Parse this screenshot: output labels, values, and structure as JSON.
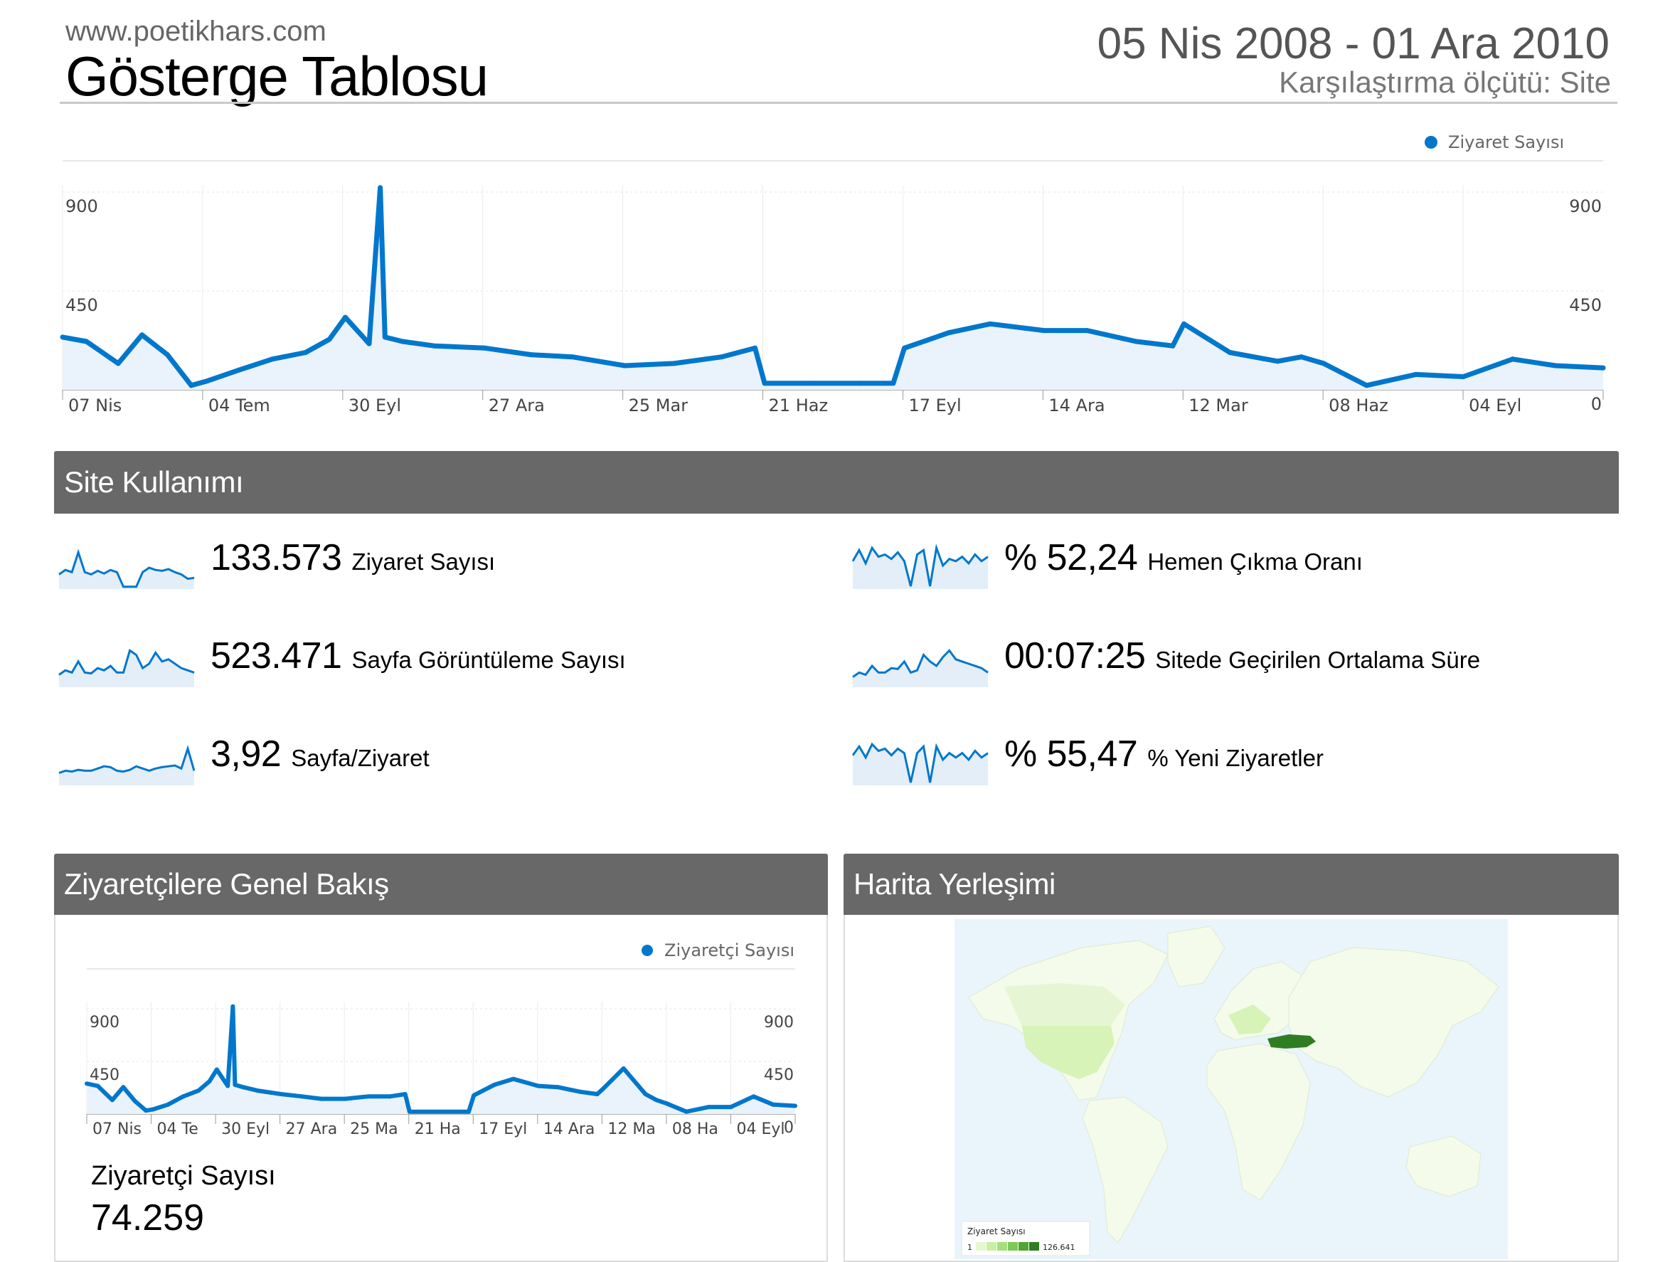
{
  "header": {
    "site": "www.poetikhars.com",
    "title": "Gösterge Tablosu",
    "date_range": "05 Nis 2008 - 01 Ara 2010",
    "compare": "Karşılaştırma ölçütü: Site"
  },
  "chart_data": [
    {
      "type": "area",
      "legend": "Ziyaret Sayısı",
      "y_left_ticks": [
        "900",
        "450"
      ],
      "y_right_ticks": [
        "900",
        "450",
        "0"
      ],
      "ylim": [
        0,
        900
      ],
      "x_tick_labels": [
        "07 Nis",
        "04 Tem",
        "30 Eyl",
        "27 Ara",
        "25 Mar",
        "21 Haz",
        "17 Eyl",
        "14 Ara",
        "12 Mar",
        "08 Haz",
        "04 Eyl"
      ],
      "grid": true,
      "color": "#0077cc",
      "x": [
        "2008-04-05",
        "2008-04-20",
        "2008-05-10",
        "2008-05-25",
        "2008-06-10",
        "2008-06-25",
        "2008-07-05",
        "2008-07-25",
        "2008-08-15",
        "2008-09-05",
        "2008-09-20",
        "2008-09-30",
        "2008-10-15",
        "2008-10-22",
        "2008-10-25",
        "2008-11-05",
        "2008-11-25",
        "2008-12-27",
        "2009-01-25",
        "2009-02-20",
        "2009-03-25",
        "2009-04-25",
        "2009-05-25",
        "2009-06-15",
        "2009-06-21",
        "2009-07-20",
        "2009-08-20",
        "2009-09-10",
        "2009-09-17",
        "2009-10-15",
        "2009-11-10",
        "2009-12-14",
        "2010-01-10",
        "2010-02-10",
        "2010-03-05",
        "2010-03-12",
        "2010-04-10",
        "2010-05-10",
        "2010-05-25",
        "2010-06-08",
        "2010-07-05",
        "2010-08-05",
        "2010-09-04",
        "2010-10-05",
        "2010-11-01",
        "2010-12-01"
      ],
      "values": [
        240,
        220,
        120,
        250,
        160,
        20,
        40,
        90,
        140,
        170,
        230,
        330,
        210,
        920,
        240,
        220,
        200,
        190,
        160,
        150,
        110,
        120,
        150,
        190,
        30,
        30,
        30,
        30,
        190,
        260,
        300,
        270,
        270,
        220,
        200,
        300,
        170,
        130,
        150,
        120,
        20,
        70,
        60,
        140,
        110,
        100
      ]
    },
    {
      "type": "area",
      "legend": "Ziyaretçi Sayısı",
      "y_left_ticks": [
        "900",
        "450"
      ],
      "y_right_ticks": [
        "900",
        "450",
        "0"
      ],
      "ylim": [
        0,
        900
      ],
      "x_tick_labels": [
        "07 Nis",
        "04 Te",
        "30 Eyl",
        "27 Ara",
        "25 Ma",
        "21 Ha",
        "17 Eyl",
        "14 Ara",
        "12 Ma",
        "08 Ha",
        "04 Eyl"
      ],
      "grid": true,
      "color": "#0077cc",
      "x": [
        "2008-04-05",
        "2008-04-20",
        "2008-05-10",
        "2008-05-25",
        "2008-06-10",
        "2008-06-25",
        "2008-07-05",
        "2008-07-25",
        "2008-08-15",
        "2008-09-05",
        "2008-09-20",
        "2008-09-30",
        "2008-10-15",
        "2008-10-22",
        "2008-10-25",
        "2008-11-05",
        "2008-11-25",
        "2008-12-27",
        "2009-01-25",
        "2009-02-20",
        "2009-03-25",
        "2009-04-25",
        "2009-05-25",
        "2009-06-15",
        "2009-06-21",
        "2009-07-20",
        "2009-08-20",
        "2009-09-10",
        "2009-09-17",
        "2009-10-15",
        "2009-11-10",
        "2009-12-14",
        "2010-01-10",
        "2010-02-10",
        "2010-03-05",
        "2010-03-12",
        "2010-04-10",
        "2010-05-10",
        "2010-05-25",
        "2010-06-08",
        "2010-07-05",
        "2010-08-05",
        "2010-09-04",
        "2010-10-05",
        "2010-11-01",
        "2010-12-01"
      ],
      "values": [
        260,
        240,
        120,
        230,
        110,
        30,
        40,
        80,
        150,
        200,
        280,
        380,
        240,
        920,
        250,
        230,
        200,
        170,
        150,
        130,
        130,
        150,
        150,
        170,
        20,
        20,
        20,
        20,
        160,
        250,
        300,
        240,
        230,
        190,
        170,
        210,
        390,
        170,
        120,
        90,
        20,
        60,
        60,
        150,
        80,
        70
      ]
    }
  ],
  "site_usage": {
    "title": "Site Kullanımı",
    "metrics": [
      {
        "value": "133.573",
        "label": "Ziyaret Sayısı",
        "spark": [
          30,
          40,
          35,
          80,
          35,
          30,
          38,
          32,
          40,
          35,
          2,
          2,
          2,
          35,
          45,
          40,
          38,
          42,
          35,
          30,
          20,
          22
        ]
      },
      {
        "value": "% 52,24",
        "label": "Hemen Çıkma Oranı",
        "spark": [
          60,
          85,
          55,
          90,
          70,
          75,
          65,
          80,
          60,
          3,
          75,
          85,
          3,
          90,
          50,
          65,
          60,
          70,
          55,
          75,
          60,
          70
        ]
      },
      {
        "value": "523.471",
        "label": "Sayfa Görüntüleme Sayısı",
        "spark": [
          25,
          35,
          30,
          55,
          30,
          28,
          40,
          35,
          45,
          30,
          30,
          80,
          70,
          40,
          50,
          75,
          55,
          60,
          50,
          40,
          35,
          30
        ]
      },
      {
        "value": "00:07:25",
        "label": "Sitede Geçirilen Ortalama Süre",
        "spark": [
          20,
          30,
          25,
          45,
          30,
          30,
          40,
          38,
          55,
          30,
          35,
          70,
          55,
          45,
          65,
          80,
          60,
          55,
          50,
          45,
          40,
          30
        ]
      },
      {
        "value": "3,92",
        "label": "Sayfa/Ziyaret",
        "spark": [
          25,
          30,
          28,
          32,
          30,
          30,
          35,
          40,
          38,
          30,
          28,
          32,
          40,
          35,
          30,
          35,
          38,
          40,
          42,
          35,
          80,
          30
        ]
      },
      {
        "value": "% 55,47",
        "label": "% Yeni Ziyaretler",
        "spark": [
          65,
          85,
          60,
          90,
          75,
          80,
          65,
          80,
          70,
          3,
          70,
          85,
          3,
          85,
          55,
          70,
          60,
          70,
          55,
          75,
          60,
          70
        ]
      }
    ]
  },
  "visitors_overview": {
    "title": "Ziyaretçilere Genel Bakış",
    "metric_label": "Ziyaretçi Sayısı",
    "metric_value": "74.259"
  },
  "map": {
    "title": "Harita Yerleşimi",
    "legend_title": "Ziyaret Sayısı",
    "legend_min": "1",
    "legend_max": "126.641",
    "highlight_country": "Turkey",
    "colors": {
      "ocean": "#eaf4fb",
      "land": "#f4fbea",
      "light": "#d7f3b8",
      "dark": "#2f7d22"
    }
  }
}
